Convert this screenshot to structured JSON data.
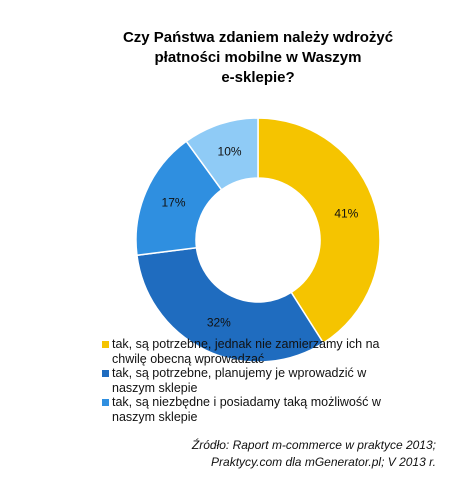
{
  "chart_data": {
    "type": "donut",
    "title_lines": [
      "Czy Państwa zdaniem należy wdrożyć",
      "płatności mobilne w Waszym",
      "e-sklepie?"
    ],
    "categories": [
      "tak, są potrzebne, jednak nie zamierzamy ich na chwilę obecną wprowadzać",
      "tak, są potrzebne, planujemy je wprowadzić w naszym sklepie",
      "tak, są niezbędne i posiadamy taką możliwość w naszym sklepie",
      null
    ],
    "values": [
      41,
      32,
      17,
      10
    ],
    "value_labels": [
      "41%",
      "32%",
      "17%",
      "10%"
    ],
    "colors": [
      "#f5c400",
      "#1f6cbf",
      "#2f8fe0",
      "#8fcbf6"
    ],
    "source_lines": [
      "Źródło: Raport m-commerce w praktyce 2013;",
      "Praktycy.com dla mGenerator.pl; V 2013 r."
    ]
  }
}
